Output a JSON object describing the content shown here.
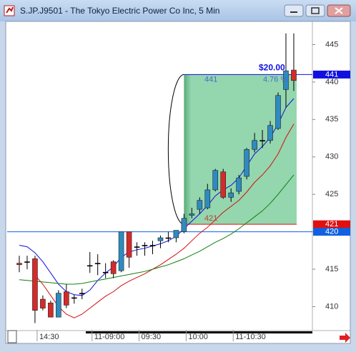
{
  "chart_data": {
    "type": "candlestick",
    "title": "S.JP.J9501 - The Tokyo Electric Power Co Inc, 5 Min",
    "categories": [
      null,
      null,
      "14:30",
      null,
      null,
      null,
      null,
      null,
      null,
      "11-09:00",
      null,
      null,
      null,
      null,
      null,
      "09:30",
      null,
      null,
      null,
      null,
      null,
      "10:00",
      null,
      null,
      null,
      null,
      null,
      "11-10:30",
      null,
      null,
      null,
      null,
      null,
      null,
      null,
      null
    ],
    "open": [
      415.8,
      416,
      416.4,
      411,
      410.5,
      408.6,
      412,
      411.2,
      411.8,
      415.5,
      415.8,
      414.6,
      416,
      414.8,
      420,
      418,
      418.2,
      418.2,
      418.8,
      419.2,
      419.2,
      420,
      422.2,
      423,
      423.2,
      425.6,
      428,
      424.6,
      425.4,
      427.4,
      431,
      432.2,
      432.2,
      433.8,
      439,
      441.6
    ],
    "high": [
      416.8,
      416.8,
      416.8,
      411.5,
      410.8,
      412.2,
      413,
      411.6,
      412.4,
      417.3,
      417,
      415.8,
      416.2,
      420,
      420,
      418.6,
      418.6,
      418.8,
      419.5,
      420,
      420.2,
      422.4,
      423.2,
      424.6,
      426.4,
      428.4,
      428.4,
      425.8,
      427.6,
      431.2,
      433.2,
      433.6,
      434.8,
      438.6,
      446.5,
      446.5
    ],
    "low": [
      414.6,
      415,
      407.8,
      409.5,
      408.6,
      408.6,
      409.8,
      410.4,
      411,
      414.5,
      414.2,
      413.8,
      413.8,
      414.6,
      415.2,
      416.8,
      416.8,
      417,
      417.8,
      418.6,
      418.6,
      419.8,
      421.8,
      422.4,
      423,
      425.4,
      424.4,
      424,
      425,
      427,
      430.6,
      431.2,
      431.8,
      433.6,
      436.6,
      438.8
    ],
    "close": [
      415.6,
      416,
      409.5,
      409.8,
      408.6,
      411.8,
      410.2,
      411.2,
      411.8,
      415.5,
      415.8,
      414.6,
      414.4,
      420,
      416.6,
      418,
      418.2,
      418.2,
      419.2,
      419.2,
      420.2,
      421.8,
      422.4,
      424.2,
      425.6,
      428.2,
      424.6,
      425.2,
      427.2,
      431,
      432.2,
      432.2,
      434.2,
      438.2,
      441.5,
      440.2
    ],
    "up_color": "#2e8bc0",
    "down_color": "#d42a2a",
    "series": [
      {
        "color": "#1010e0",
        "values": [
          418.2,
          418,
          417.2,
          416,
          414.5,
          413,
          412,
          411.6,
          411.5,
          412.2,
          413.5,
          414.5,
          415.3,
          416.6,
          417.3,
          417.6,
          417.8,
          418.1,
          418.4,
          418.8,
          419.4,
          420.4,
          421.4,
          422.4,
          423.5,
          424.8,
          425.6,
          426.2,
          427.2,
          428.8,
          430.4,
          431.4,
          432.6,
          434.4,
          436.6,
          437.8
        ]
      },
      {
        "color": "#d01010",
        "values": [
          null,
          null,
          414.2,
          413,
          411.5,
          410,
          409,
          408.5,
          409,
          409.8,
          410.6,
          411.4,
          412,
          412.8,
          413.4,
          413.9,
          414.4,
          415,
          415.6,
          416.3,
          417,
          417.8,
          418.8,
          419.8,
          420.6,
          421.6,
          422.6,
          423.4,
          424.2,
          425.3,
          426.6,
          427.6,
          428.8,
          430.4,
          432.6,
          434.4
        ]
      },
      {
        "color": "#108010",
        "values": [
          413.6,
          413.5,
          413.4,
          413.3,
          413.2,
          413.1,
          413,
          413,
          413.1,
          413.3,
          413.5,
          413.7,
          413.9,
          414.1,
          414.3,
          414.5,
          414.7,
          415,
          415.3,
          415.6,
          416,
          416.4,
          416.9,
          417.4,
          418,
          418.6,
          419.1,
          419.7,
          420.4,
          421.2,
          422,
          422.8,
          423.8,
          425,
          426.3,
          427.6
        ]
      }
    ],
    "ylim": [
      406.9,
      448
    ],
    "yticks": [
      410,
      415,
      420,
      425,
      430,
      435,
      440,
      445
    ],
    "trade": {
      "entry": 421,
      "exit": 441,
      "profit_label": "$20.00",
      "percent_label": "4.76 %",
      "color": "#3cb46a"
    },
    "price_markers": [
      {
        "value": 441,
        "color": "#1010e0"
      },
      {
        "value": 421,
        "color": "#e01010"
      },
      {
        "value": 420,
        "color": "#1060e0"
      }
    ]
  }
}
